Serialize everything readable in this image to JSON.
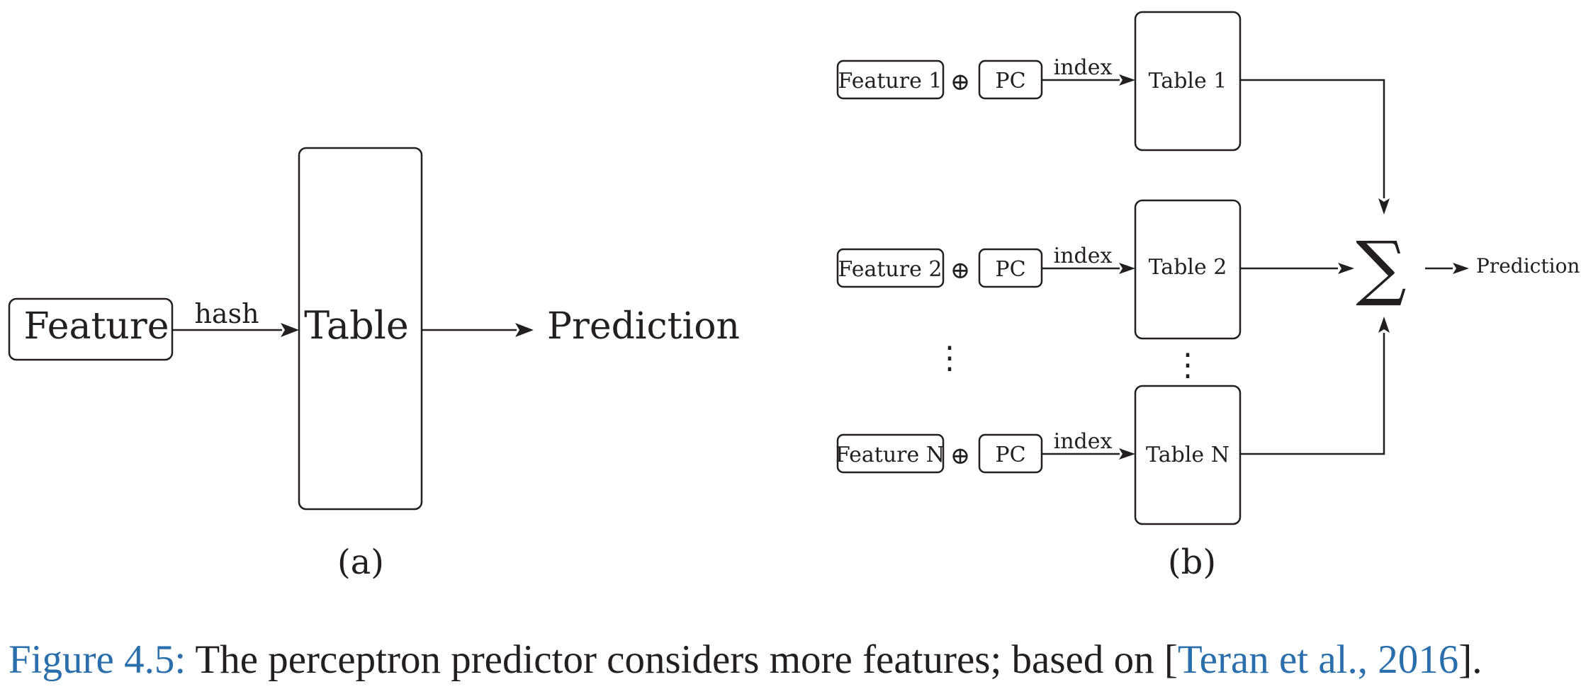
{
  "colors": {
    "ink": "#231f20",
    "link": "#2a6fab"
  },
  "panel_a": {
    "feature_label": "Feature",
    "edge_label": "hash",
    "table_label": "Table",
    "output_label": "Prediction",
    "sublabel": "(a)"
  },
  "panel_b": {
    "rows": [
      {
        "feature": "Feature 1",
        "xor": "⊕",
        "pc": "PC",
        "edge": "index",
        "table": "Table 1"
      },
      {
        "feature": "Feature 2",
        "xor": "⊕",
        "pc": "PC",
        "edge": "index",
        "table": "Table 2"
      },
      {
        "feature": "Feature N",
        "xor": "⊕",
        "pc": "PC",
        "edge": "index",
        "table": "Table N"
      }
    ],
    "ellipsis": "⋮",
    "sum_symbol": "∑",
    "output_label": "Prediction",
    "sublabel": "(b)"
  },
  "caption": {
    "figure_label": "Figure 4.5:",
    "text": " The perceptron predictor considers more features; based on [",
    "citation": "Teran et al., 2016",
    "close": "]."
  }
}
